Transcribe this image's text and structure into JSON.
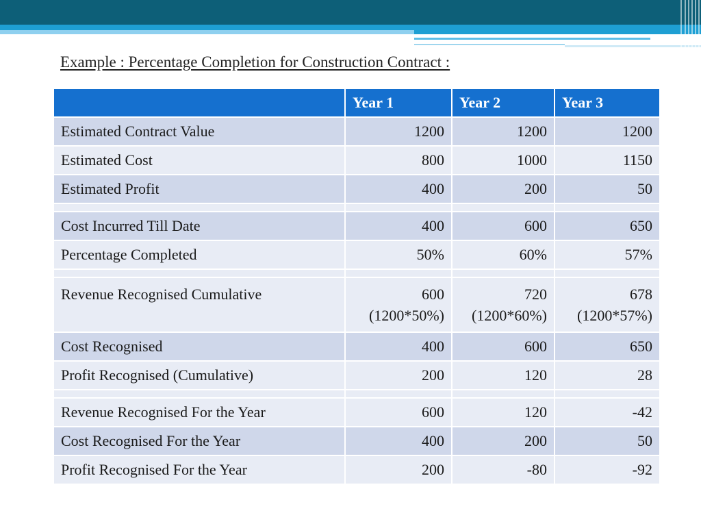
{
  "title": "Example : Percentage Completion for Construction Contract :",
  "colors": {
    "header": "#1570cf",
    "row_dark": "#cfd7ea",
    "row_light": "#e8ecf5",
    "banner": "#0d5f78",
    "banner_accent": "#1e9fd3"
  },
  "table": {
    "headers": [
      "",
      "Year 1",
      "Year 2",
      "Year 3"
    ],
    "rows": [
      {
        "label": "Estimated Contract Value",
        "values": [
          "1200",
          "1200",
          "1200"
        ]
      },
      {
        "label": "Estimated Cost",
        "values": [
          "800",
          "1000",
          "1150"
        ]
      },
      {
        "label": "Estimated Profit",
        "values": [
          "400",
          "200",
          "50"
        ]
      },
      {
        "label": "Cost Incurred Till Date",
        "values": [
          "400",
          "600",
          "650"
        ]
      },
      {
        "label": "Percentage Completed",
        "values": [
          "50%",
          "60%",
          "57%"
        ]
      },
      {
        "label": "Revenue Recognised Cumulative",
        "values": [
          "600",
          "720",
          "678"
        ],
        "notes": [
          "(1200*50%)",
          "(1200*60%)",
          "(1200*57%)"
        ]
      },
      {
        "label": "Cost Recognised",
        "values": [
          "400",
          "600",
          "650"
        ]
      },
      {
        "label": "Profit Recognised (Cumulative)",
        "values": [
          "200",
          "120",
          "28"
        ]
      },
      {
        "label": "Revenue Recognised For the Year",
        "values": [
          "600",
          "120",
          "-42"
        ]
      },
      {
        "label": "Cost Recognised For the Year",
        "values": [
          "400",
          "200",
          "50"
        ]
      },
      {
        "label": "Profit Recognised For the Year",
        "values": [
          "200",
          "-80",
          "-92"
        ]
      }
    ]
  }
}
